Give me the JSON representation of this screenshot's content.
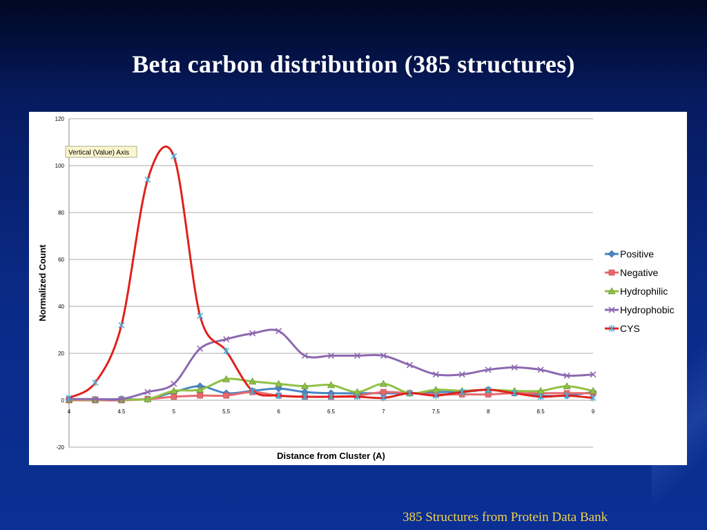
{
  "slide": {
    "title": "Beta carbon distribution (385 structures)",
    "footer": "385 Structures from Protein Data Bank"
  },
  "chart_data": {
    "type": "line",
    "smooth": true,
    "x": [
      4,
      4.25,
      4.5,
      4.75,
      5,
      5.25,
      5.5,
      5.75,
      6,
      6.25,
      6.5,
      6.75,
      7,
      7.25,
      7.5,
      7.75,
      8,
      8.25,
      8.5,
      8.75,
      9
    ],
    "x_ticks": [
      "4",
      "4.5",
      "5",
      "5.5",
      "6",
      "6.5",
      "7",
      "7.5",
      "8",
      "8.5",
      "9"
    ],
    "y_ticks": [
      "120",
      "100",
      "80",
      "60",
      "40",
      "20",
      "0",
      "-20"
    ],
    "xlabel": "Distance from Cluster (A)",
    "ylabel": "Normalized Count",
    "xlim": [
      4,
      9
    ],
    "ylim": [
      -20,
      120
    ],
    "grid": true,
    "legend_position": "right",
    "tooltip": "Vertical (Value) Axis",
    "series": [
      {
        "name": "Positive",
        "color": "#4a86c5",
        "marker": "diamond",
        "values": [
          0.5,
          0.3,
          0.5,
          0.5,
          3.5,
          6,
          3,
          4,
          5,
          3.5,
          3,
          3,
          3,
          3,
          3.5,
          3.5,
          4.5,
          3.5,
          2,
          2,
          3.5
        ]
      },
      {
        "name": "Negative",
        "color": "#e8696d",
        "marker": "square",
        "values": [
          0,
          0,
          0,
          0.5,
          1.5,
          2,
          2,
          3.5,
          2,
          1.5,
          1.5,
          2,
          3.5,
          3,
          2.5,
          2.5,
          2.5,
          3,
          3,
          3,
          3
        ]
      },
      {
        "name": "Hydrophilic",
        "color": "#8fc045",
        "marker": "triangle",
        "values": [
          0.3,
          0.3,
          0.3,
          0.5,
          4,
          4.5,
          9,
          8,
          7,
          6,
          6.5,
          3.5,
          7,
          3,
          4.5,
          4,
          4.5,
          4,
          4,
          6,
          4
        ]
      },
      {
        "name": "Hydrophobic",
        "color": "#8d68b0",
        "marker": "x",
        "values": [
          0.5,
          0.5,
          0.5,
          3.5,
          7,
          22,
          26,
          28.5,
          29.5,
          19,
          19,
          19,
          19,
          15,
          11,
          11,
          13,
          14,
          13,
          10.5,
          11
        ]
      },
      {
        "name": "CYS",
        "color": "#e0201c",
        "marker": "star",
        "marker_color": "#46a9d8",
        "values": [
          1,
          7.5,
          32,
          94,
          104,
          36,
          21,
          4,
          2,
          1.5,
          1.5,
          1.5,
          1,
          3,
          2,
          3.5,
          4.5,
          3,
          1.5,
          2,
          1
        ]
      }
    ]
  }
}
